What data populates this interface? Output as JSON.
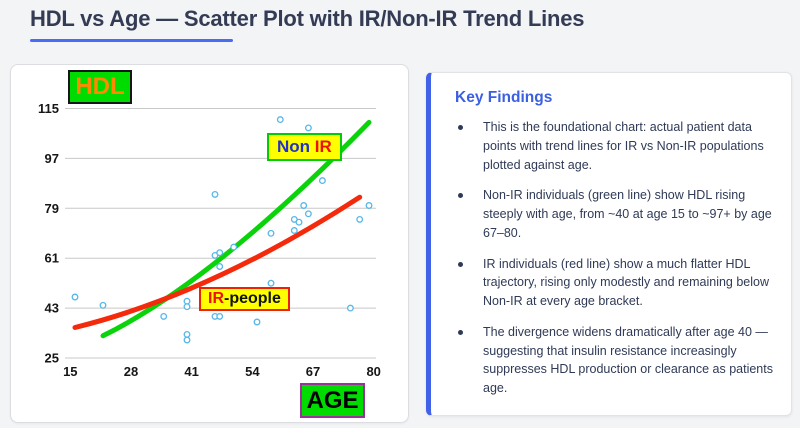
{
  "header": {
    "title": "HDL vs Age — Scatter Plot with IR/Non-IR Trend Lines"
  },
  "chart_data": {
    "type": "scatter",
    "xlabel": "AGE",
    "ylabel": "HDL",
    "xlim": [
      15,
      80
    ],
    "ylim": [
      25,
      115
    ],
    "xticks": [
      15,
      28,
      41,
      54,
      67,
      80
    ],
    "yticks": [
      25,
      43,
      61,
      79,
      97,
      115
    ],
    "grid": "horizontal",
    "point_color": "#56b7e8",
    "points": [
      [
        16,
        47
      ],
      [
        22,
        44
      ],
      [
        35,
        40
      ],
      [
        40,
        45.5
      ],
      [
        40,
        43.5
      ],
      [
        40,
        33.5
      ],
      [
        40,
        31.5
      ],
      [
        46,
        84
      ],
      [
        46,
        62
      ],
      [
        47,
        63
      ],
      [
        47,
        58
      ],
      [
        46,
        40
      ],
      [
        47,
        40
      ],
      [
        50,
        65
      ],
      [
        55,
        38
      ],
      [
        58,
        52
      ],
      [
        58,
        70
      ],
      [
        60,
        111
      ],
      [
        63,
        75
      ],
      [
        64,
        74
      ],
      [
        63,
        71
      ],
      [
        65,
        80
      ],
      [
        66,
        77
      ],
      [
        66,
        108
      ],
      [
        69,
        89
      ],
      [
        75,
        43
      ],
      [
        77,
        75
      ],
      [
        79,
        80
      ]
    ],
    "trend_lines": [
      {
        "name": "Non IR",
        "color": "#0bd30b",
        "start": [
          22,
          33
        ],
        "control": [
          46,
          53
        ],
        "end": [
          79,
          110
        ]
      },
      {
        "name": "IR-people",
        "color": "#f42a0c",
        "start": [
          16,
          36
        ],
        "control": [
          45,
          48
        ],
        "end": [
          77,
          83
        ]
      }
    ],
    "annotations": {
      "hdl_label": "HDL",
      "age_label": "AGE",
      "nonir_part1": "Non ",
      "nonir_part2": "IR",
      "ir_part1": "IR",
      "ir_part2": "-people"
    }
  },
  "key_findings": {
    "heading": "Key Findings",
    "bullets": [
      "This is the foundational chart: actual patient data points with trend lines for IR vs Non-IR populations plotted against age.",
      "Non-IR individuals (green line) show HDL rising steeply with age, from ~40 at age 15 to ~97+ by age 67–80.",
      "IR individuals (red line) show a much flatter HDL trajectory, rising only modestly and remaining below Non-IR at every age bracket.",
      "The divergence widens dramatically after age 40 — suggesting that insulin resistance increasingly suppresses HDL production or clearance as patients age."
    ]
  }
}
